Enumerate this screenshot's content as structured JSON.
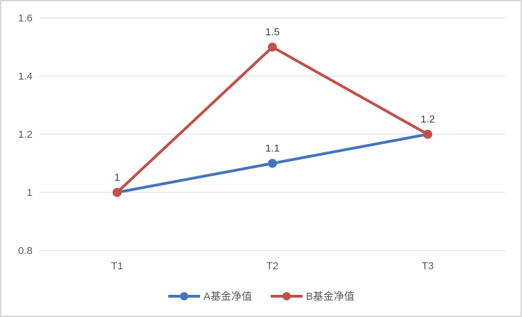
{
  "chart_data": {
    "type": "line",
    "title": "",
    "xlabel": "",
    "ylabel": "",
    "categories": [
      "T1",
      "T2",
      "T3"
    ],
    "series": [
      {
        "name": "A基金净值",
        "values": [
          1,
          1.1,
          1.2
        ],
        "color": "#4674BA",
        "marker": "circle",
        "data_labels": [
          "",
          "1.1",
          ""
        ]
      },
      {
        "name": "B基金净值",
        "values": [
          1,
          1.5,
          1.2
        ],
        "color": "#C0504D",
        "marker": "circle",
        "data_labels": [
          "1",
          "1.5",
          "1.2"
        ]
      }
    ],
    "ylim": [
      0.8,
      1.6
    ],
    "yticks": [
      {
        "value": 0.8,
        "label": "0.8"
      },
      {
        "value": 1.0,
        "label": "1"
      },
      {
        "value": 1.2,
        "label": "1.2"
      },
      {
        "value": 1.4,
        "label": "1.4"
      },
      {
        "value": 1.6,
        "label": "1.6"
      }
    ],
    "grid": true,
    "legend_position": "bottom"
  },
  "colors": {
    "background": "#ffffff",
    "border": "#d6d6d6",
    "gridline": "#d9d9d9",
    "axis_text": "#595959",
    "data_label_text": "#404040",
    "legend_text": "#595959"
  }
}
